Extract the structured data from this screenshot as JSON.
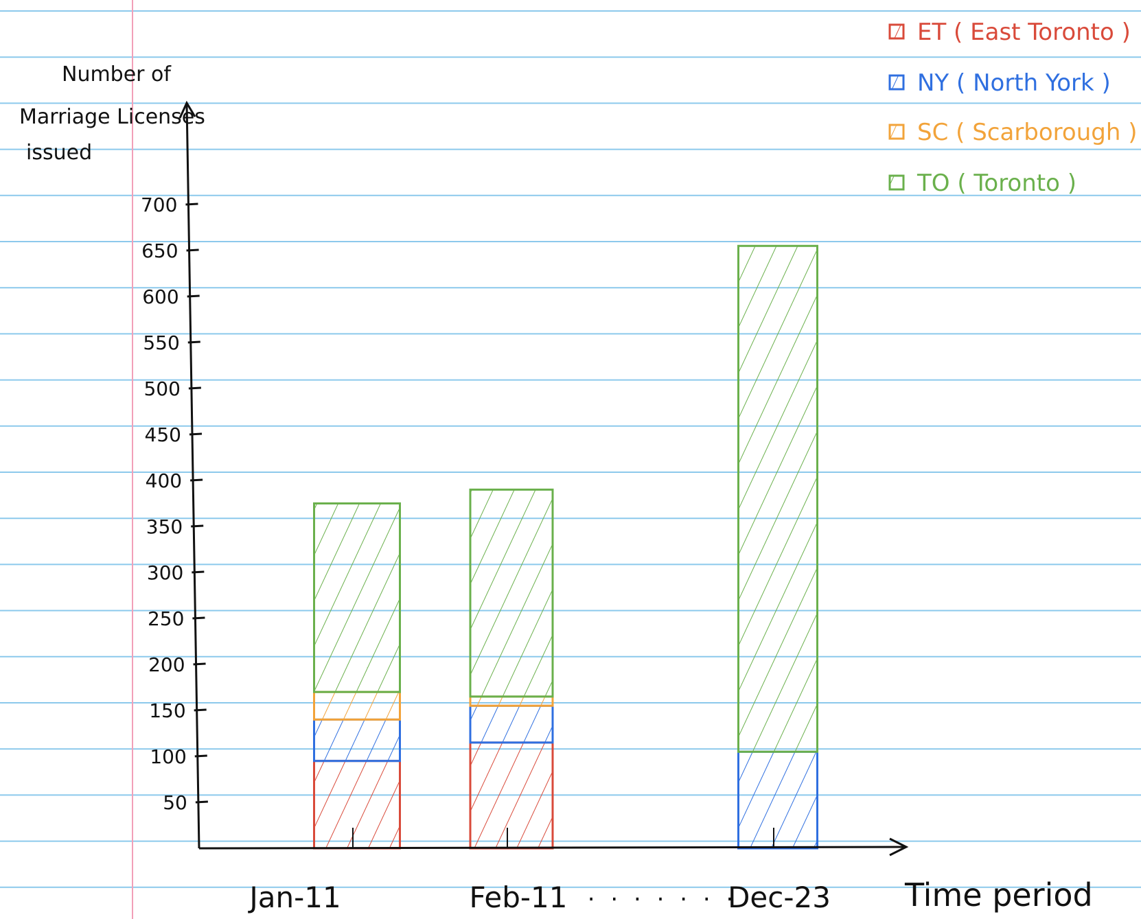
{
  "chart_data": {
    "type": "bar",
    "stacked": true,
    "xlabel": "Time period",
    "ylabel": "Number of Marriage Licenses issued",
    "categories": [
      "Jan-11",
      "Feb-11",
      "Dec-23"
    ],
    "ellipsis": ". . . . . . .",
    "ylim": [
      0,
      700
    ],
    "yticks": [
      50,
      100,
      150,
      200,
      250,
      300,
      350,
      400,
      450,
      500,
      550,
      600,
      650,
      700
    ],
    "series": [
      {
        "name": "ET ( East Toronto )",
        "color": "#d94a3a",
        "values": [
          95,
          115,
          0
        ]
      },
      {
        "name": "NY ( North York )",
        "color": "#2f6fe0",
        "values": [
          45,
          40,
          105
        ]
      },
      {
        "name": "SC ( Scarborough )",
        "color": "#f2a33a",
        "values": [
          30,
          10,
          0
        ]
      },
      {
        "name": "TO ( Toronto )",
        "color": "#6ab04c",
        "values": [
          205,
          225,
          550
        ]
      }
    ],
    "legend_position": "top-right",
    "background": "lined notebook paper"
  }
}
